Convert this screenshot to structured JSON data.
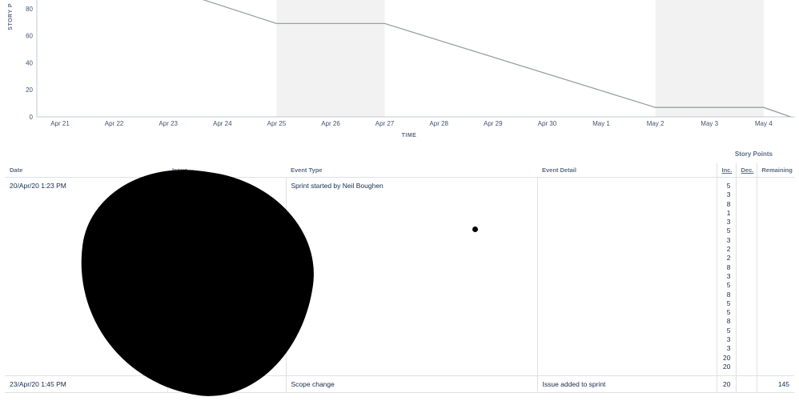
{
  "chart_data": {
    "type": "line",
    "xlabel": "TIME",
    "ylabel": "STORY P",
    "x_ticks": [
      "Apr 21",
      "Apr 22",
      "Apr 23",
      "Apr 24",
      "Apr 25",
      "Apr 26",
      "Apr 27",
      "Apr 28",
      "Apr 29",
      "Apr 30",
      "May 1",
      "May 2",
      "May 3",
      "May 4"
    ],
    "y_ticks": [
      0,
      20,
      40,
      60,
      80
    ],
    "ylim": [
      0,
      90
    ],
    "x_range": [
      "Apr 20 12:00",
      "May 4 12:00"
    ],
    "non_working_periods": [
      [
        "Apr 25",
        "Apr 27"
      ],
      [
        "May 2",
        "May 4"
      ]
    ],
    "series": [
      {
        "points": [
          [
            "Apr 23",
            95
          ],
          [
            "Apr 25",
            69
          ],
          [
            "Apr 27",
            69
          ],
          [
            "May 2",
            7
          ],
          [
            "May 4",
            7
          ],
          [
            "May 4 12:00",
            0
          ]
        ]
      }
    ],
    "grid": false,
    "colors": {
      "line": "#9aa0a6",
      "non_working": "#f2f2f2",
      "axis": "#c1c7d0"
    }
  },
  "table": {
    "group_header": "Story Points",
    "headers": {
      "date": "Date",
      "issue": "Issue",
      "event_type": "Event Type",
      "event_detail": "Event Detail",
      "inc": "Inc.",
      "dec": "Dec.",
      "remaining": "Remaining"
    },
    "rows": [
      {
        "date": "20/Apr/20 1:23 PM",
        "issue": "",
        "event_type": "Sprint started by Neil Boughen",
        "event_detail": "",
        "inc": [
          "5",
          "3",
          "8",
          "1",
          "3",
          "5",
          "3",
          "2",
          "2",
          "8",
          "3",
          "5",
          "8",
          "5",
          "5",
          "8",
          "5",
          "3",
          "3",
          "20",
          "20"
        ],
        "dec": "",
        "remaining": ""
      },
      {
        "date": "23/Apr/20 1:45 PM",
        "issue": "",
        "event_type": "Scope change",
        "event_detail": "Issue added to sprint",
        "inc": "20",
        "dec": "",
        "remaining": "145"
      }
    ]
  }
}
